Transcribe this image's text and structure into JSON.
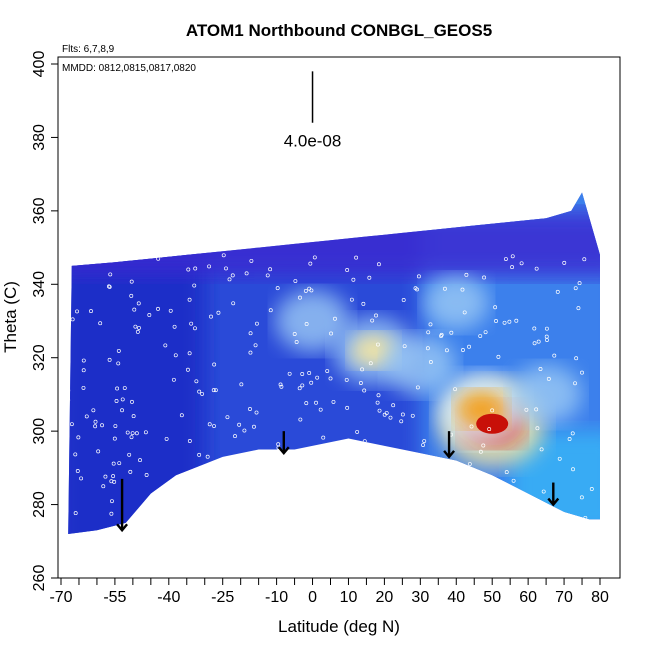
{
  "chart_data": {
    "type": "heatmap",
    "title": "ATOM1 Northbound CONBGL_GEOS5",
    "xlabel": "Latitude (deg N)",
    "ylabel": "Theta (C)",
    "xlim": [
      -70,
      80
    ],
    "ylim": [
      260,
      400
    ],
    "x_ticks": [
      -70,
      -55,
      -40,
      -25,
      -10,
      0,
      10,
      20,
      30,
      40,
      50,
      60,
      70,
      80
    ],
    "y_ticks": [
      260,
      280,
      300,
      320,
      340,
      360,
      380,
      400
    ],
    "annotations": {
      "flights": "Flts: 6,7,8,9",
      "dates": "MMDD: 0812,0815,0817,0820"
    },
    "scale_bar": {
      "x": 0,
      "y_top": 398,
      "y_bottom": 384,
      "label": "4.0e-08"
    },
    "arrows": [
      {
        "x": -53,
        "y_top": 287,
        "y_bottom": 273
      },
      {
        "x": -8,
        "y_top": 300,
        "y_bottom": 294
      },
      {
        "x": 38,
        "y_top": 300,
        "y_bottom": 293
      },
      {
        "x": 67,
        "y_top": 286,
        "y_bottom": 280
      }
    ],
    "top_boundary": [
      [
        -67,
        345
      ],
      [
        -55,
        346
      ],
      [
        -45,
        347
      ],
      [
        -35,
        348
      ],
      [
        -25,
        349
      ],
      [
        -15,
        350
      ],
      [
        -5,
        351
      ],
      [
        5,
        352
      ],
      [
        15,
        353
      ],
      [
        25,
        354
      ],
      [
        35,
        355
      ],
      [
        45,
        356
      ],
      [
        55,
        357
      ],
      [
        65,
        358
      ],
      [
        72,
        360
      ],
      [
        75,
        365
      ]
    ],
    "bottom_boundary": [
      [
        -68,
        272
      ],
      [
        -60,
        273
      ],
      [
        -52,
        275
      ],
      [
        -45,
        283
      ],
      [
        -38,
        288
      ],
      [
        -25,
        293
      ],
      [
        -15,
        295
      ],
      [
        -5,
        295
      ],
      [
        10,
        298
      ],
      [
        20,
        296
      ],
      [
        30,
        294
      ],
      [
        40,
        292
      ],
      [
        50,
        288
      ],
      [
        60,
        283
      ],
      [
        70,
        278
      ],
      [
        77,
        276
      ],
      [
        80,
        276
      ]
    ],
    "hotspots": [
      {
        "lat": 50,
        "theta": 302,
        "level": 1.0
      },
      {
        "lat": 47,
        "theta": 306,
        "level": 0.7
      },
      {
        "lat": 17,
        "theta": 322,
        "level": 0.6
      },
      {
        "lat": 0,
        "theta": 330,
        "level": 0.5
      },
      {
        "lat": 30,
        "theta": 318,
        "level": 0.45
      },
      {
        "lat": 65,
        "theta": 310,
        "level": 0.45
      },
      {
        "lat": 40,
        "theta": 335,
        "level": 0.35
      }
    ],
    "grid": false
  }
}
